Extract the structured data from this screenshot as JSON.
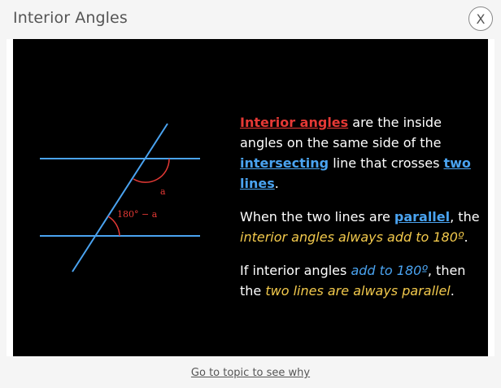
{
  "dialog": {
    "title": "Interior Angles",
    "close_label": "X"
  },
  "diagram": {
    "angle_label_a": "a",
    "angle_label_supplement": "180° − a",
    "line_color": "#4aa3f0",
    "angle_color": "#e53935"
  },
  "text": {
    "p1": {
      "term": "Interior angles",
      "t1": " are the inside angles on the same side of the ",
      "link1": "intersecting",
      "t2": " line that crosses ",
      "link2": "two lines",
      "t3": "."
    },
    "p2": {
      "t1": "When the two lines are ",
      "link": "parallel",
      "t2": ", the ",
      "italic": "interior angles always add to 180º",
      "t3": "."
    },
    "p3": {
      "t1": "If interior angles ",
      "italic1": "add to 180º",
      "t2": ", then the ",
      "italic2": "two lines are always parallel",
      "t3": "."
    }
  },
  "footer": {
    "link_label": "Go to topic to see why"
  }
}
